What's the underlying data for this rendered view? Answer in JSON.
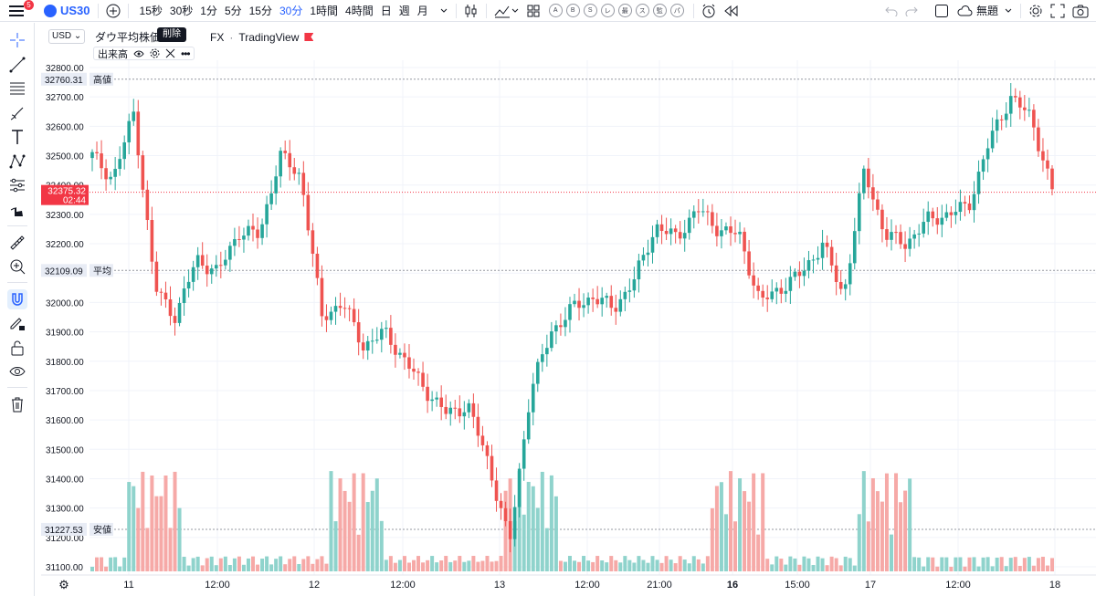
{
  "topbar": {
    "menu_badge": "5",
    "symbol": "US30",
    "timeframes": [
      "15秒",
      "30秒",
      "1分",
      "5分",
      "15分",
      "30分",
      "1時間",
      "4時間",
      "日",
      "週",
      "月"
    ],
    "active_timeframe": "30分",
    "indicator_circles": [
      "A",
      "B",
      "S",
      "レ",
      "最",
      "ス",
      "監",
      "パ"
    ],
    "layout_name": "無題"
  },
  "legend": {
    "currency": "USD",
    "title": "ダウ平均株価",
    "exchange": "FX",
    "source": "TradingView",
    "tooltip": "削除",
    "volume_label": "出来高"
  },
  "colors": {
    "up": "#26a69a",
    "down": "#ef5350",
    "up_vol": "#8fd3cc",
    "down_vol": "#f6a9a7",
    "accent": "#2962ff",
    "price_tag": "#f23645"
  },
  "chart_data": {
    "type": "candlestick",
    "ylim": [
      31050,
      32850
    ],
    "y_ticks": [
      "32800.00",
      "32700.00",
      "32600.00",
      "32500.00",
      "32400.00",
      "32300.00",
      "32200.00",
      "32100.00",
      "32000.00",
      "31900.00",
      "31800.00",
      "31700.00",
      "31600.00",
      "31500.00",
      "31400.00",
      "31300.00",
      "31200.00",
      "31100.00"
    ],
    "x_ticks": [
      "11",
      "12:00",
      "12",
      "12:00",
      "13",
      "12:00",
      "21:00",
      "16",
      "15:00",
      "17",
      "12:00",
      "18"
    ],
    "levels": [
      {
        "label": "高値",
        "value": "32760.31"
      },
      {
        "label": "平均",
        "value": "32109.09"
      },
      {
        "label": "安値",
        "value": "31227.53"
      }
    ],
    "last_price": "32375.32",
    "countdown": "02:44",
    "ohlc_knots": [
      32500,
      32420,
      32650,
      32050,
      31950,
      32150,
      32100,
      32240,
      32230,
      32500,
      32430,
      31950,
      32000,
      31850,
      31900,
      31800,
      31700,
      31620,
      31650,
      31450,
      31180,
      31700,
      31900,
      31980,
      32020,
      31980,
      32080,
      32260,
      32220,
      32320,
      32250,
      32230,
      32000,
      32050,
      32100,
      32200,
      32020,
      32450,
      32230,
      32200,
      32280,
      32300,
      32330,
      32550,
      32700,
      32630,
      32380
    ]
  }
}
